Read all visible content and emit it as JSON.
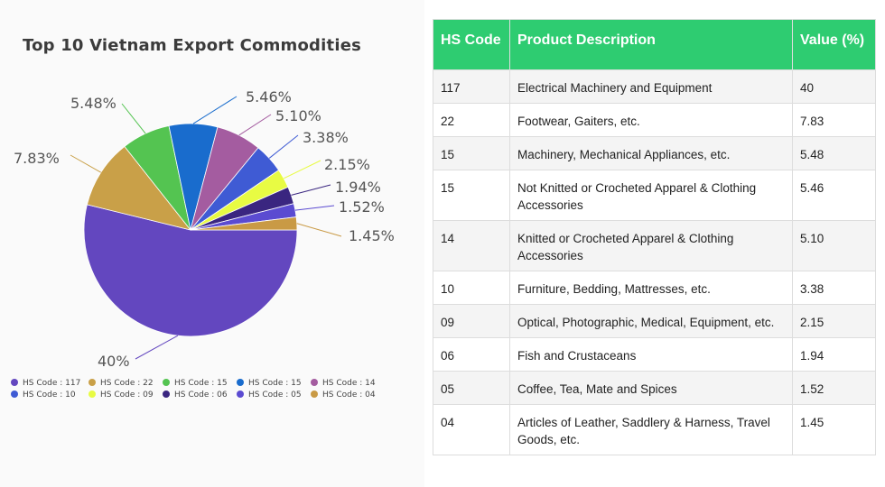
{
  "chart_data": {
    "type": "pie",
    "title": "Top 10 Vietnam Export Commodities",
    "slices": [
      {
        "label": "HS Code : 117",
        "value": 40,
        "display": "40%",
        "color": "#6347bf"
      },
      {
        "label": "HS Code : 22",
        "value": 7.83,
        "display": "7.83%",
        "color": "#c9a048"
      },
      {
        "label": "HS Code : 15",
        "value": 5.48,
        "display": "5.48%",
        "color": "#54c451"
      },
      {
        "label": "HS Code : 15",
        "value": 5.46,
        "display": "5.46%",
        "color": "#196ccd"
      },
      {
        "label": "HS Code : 14",
        "value": 5.1,
        "display": "5.10%",
        "color": "#a45ca0"
      },
      {
        "label": "HS Code : 10",
        "value": 3.38,
        "display": "3.38%",
        "color": "#3f5bd4"
      },
      {
        "label": "HS Code : 09",
        "value": 2.15,
        "display": "2.15%",
        "color": "#e8fb43"
      },
      {
        "label": "HS Code : 06",
        "value": 1.94,
        "display": "1.94%",
        "color": "#3a2680"
      },
      {
        "label": "HS Code : 05",
        "value": 1.52,
        "display": "1.52%",
        "color": "#5b4bd1"
      },
      {
        "label": "HS Code : 04",
        "value": 1.45,
        "display": "1.45%",
        "color": "#c99a45"
      }
    ],
    "legend_position": "bottom"
  },
  "table": {
    "headers": [
      "HS Code",
      "Product Description",
      "Value (%)"
    ],
    "rows": [
      [
        "117",
        "Electrical Machinery and Equipment",
        "40"
      ],
      [
        "22",
        "Footwear, Gaiters, etc.",
        "7.83"
      ],
      [
        "15",
        "Machinery, Mechanical Appliances, etc.",
        "5.48"
      ],
      [
        "15",
        "Not Knitted or Crocheted Apparel & Clothing Accessories",
        "5.46"
      ],
      [
        "14",
        "Knitted or Crocheted Apparel & Clothing Accessories",
        "5.10"
      ],
      [
        "10",
        "Furniture, Bedding, Mattresses, etc.",
        "3.38"
      ],
      [
        "09",
        "Optical, Photographic, Medical, Equipment, etc.",
        "2.15"
      ],
      [
        "06",
        "Fish and Crustaceans",
        "1.94"
      ],
      [
        "05",
        "Coffee, Tea, Mate and Spices",
        "1.52"
      ],
      [
        "04",
        "Articles of Leather, Saddlery & Harness, Travel Goods, etc.",
        "1.45"
      ]
    ]
  }
}
